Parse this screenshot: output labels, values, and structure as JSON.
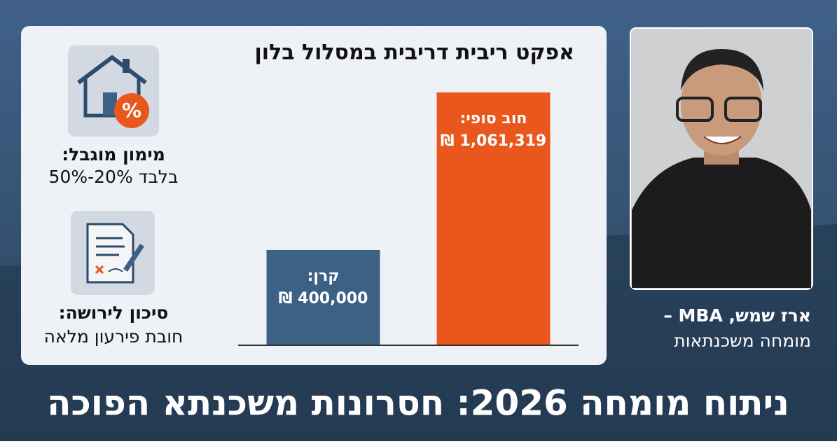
{
  "chart_data": {
    "type": "bar",
    "title": "אפקט ריבית דריבית במסלול בלון",
    "categories": [
      "קרן:",
      "חוב סופי:"
    ],
    "values": [
      400000,
      1061319
    ],
    "value_labels": [
      "400,000 ₪",
      "1,061,319 ₪"
    ],
    "colors": [
      "#3d6185",
      "#e9571d"
    ]
  },
  "sidebar": {
    "items": [
      {
        "title": "מימון מוגבל:",
        "text": "בלבד 20%-50%"
      },
      {
        "title": "סיכון לירושה:",
        "text": "חובת פירעון מלאה"
      }
    ]
  },
  "expert": {
    "name": "ארז שמש, MBA –",
    "role": "מומחה משכנתאות"
  },
  "footer": {
    "title": "ניתוח מומחה 2026: חסרונות משכנתא הפוכה"
  }
}
